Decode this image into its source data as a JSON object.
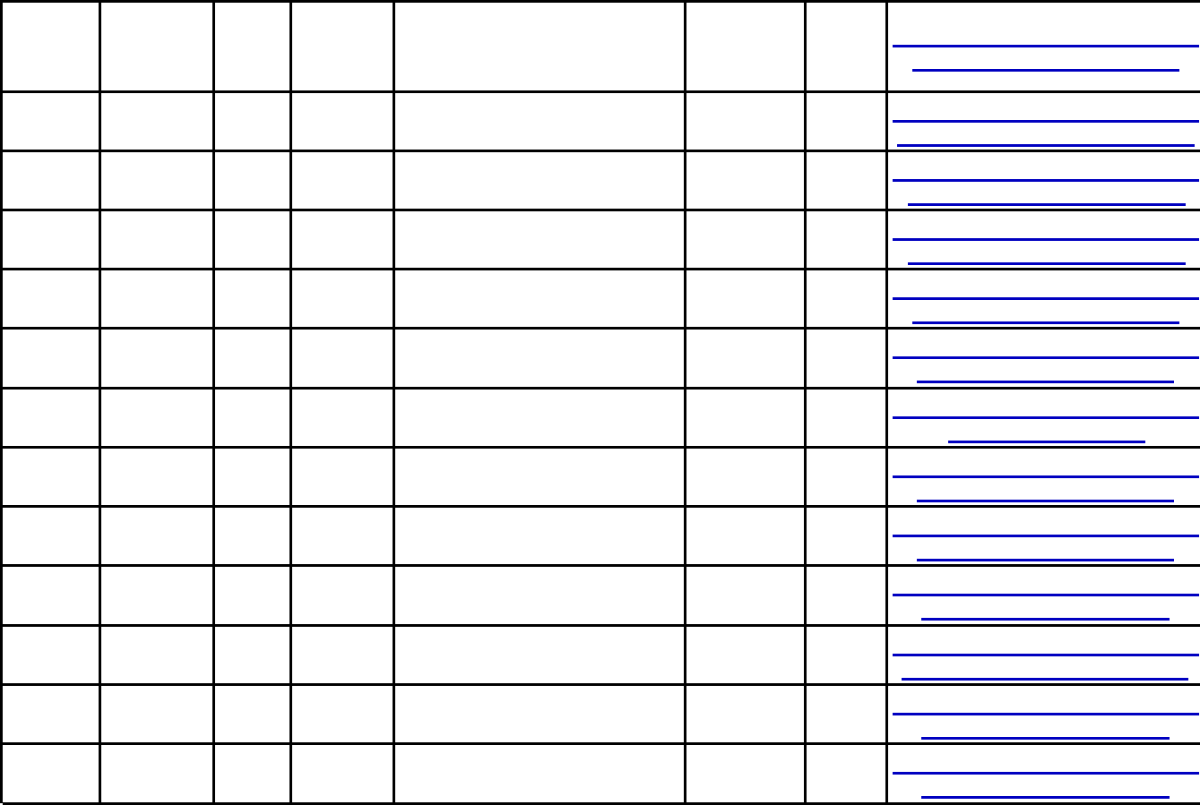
{
  "table": {
    "column_count": 8,
    "row_count": 13,
    "cells_text": "",
    "link_column_index": 7,
    "link_text_visible": false
  },
  "colors": {
    "border": "#000000",
    "link_underline": "#0000c0",
    "background": "#ffffff"
  }
}
